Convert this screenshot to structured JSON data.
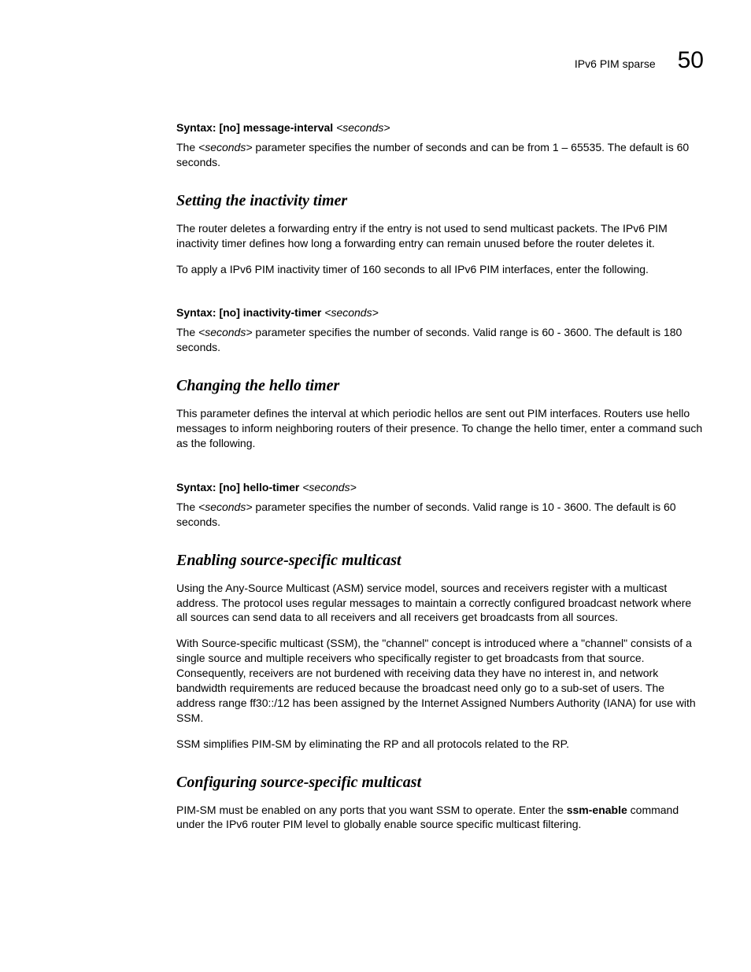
{
  "header": {
    "breadcrumb": "IPv6 PIM sparse",
    "page_number": "50"
  },
  "s0": {
    "syntax_label": "Syntax:",
    "syntax_cmd": " [no] message-interval ",
    "syntax_param": "<seconds>",
    "p1a": "The ",
    "p1b": "<seconds>",
    "p1c": " parameter specifies the number of seconds and can be from 1 – 65535. The default is 60 seconds."
  },
  "s1": {
    "title": "Setting the inactivity timer",
    "p1": "The router deletes a forwarding entry if the entry is not used to send multicast packets. The IPv6 PIM inactivity timer defines how long a forwarding entry can remain unused before the router deletes it.",
    "p2": "To apply a IPv6 PIM inactivity timer of 160 seconds to all IPv6 PIM interfaces, enter the following.",
    "syntax_label": "Syntax:",
    "syntax_cmd": " [no] inactivity-timer ",
    "syntax_param": "<seconds>",
    "p3a": "The ",
    "p3b": "<seconds>",
    "p3c": " parameter specifies the number of seconds. Valid range is 60 - 3600. The default is 180 seconds."
  },
  "s2": {
    "title": "Changing the hello timer",
    "p1": "This parameter defines the interval at which periodic hellos are sent out PIM interfaces.  Routers use hello messages to inform neighboring routers of their presence.  To change the hello timer, enter a command such as the following.",
    "syntax_label": "Syntax:",
    "syntax_cmd": " [no] hello-timer ",
    "syntax_param": "<seconds>",
    "p2a": "The ",
    "p2b": "<seconds>",
    "p2c": " parameter specifies the number of seconds. Valid range is 10 - 3600. The default is 60 seconds."
  },
  "s3": {
    "title": "Enabling source-specific multicast",
    "p1": "Using the Any-Source Multicast (ASM) service model, sources and receivers register with a multicast address. The protocol uses regular messages to maintain a correctly configured broadcast network where all sources can send data to all receivers and all receivers get broadcasts from all sources.",
    "p2": "With Source-specific multicast (SSM), the \"channel\" concept is introduced where a \"channel\" consists of a single source and multiple receivers who specifically register to get broadcasts from that source. Consequently, receivers are not burdened with receiving data they have no interest in, and network bandwidth requirements are reduced because the broadcast need only go to a sub-set of users. The address range ff30::/12 has been assigned by the Internet Assigned Numbers Authority (IANA)  for use with SSM.",
    "p3": "SSM simplifies PIM-SM by eliminating the RP and all protocols related to the RP."
  },
  "s4": {
    "title": "Configuring source-specific multicast",
    "p1a": "PIM-SM must be enabled on any ports that you want SSM to operate. Enter the ",
    "p1b": "ssm-enable",
    "p1c": " command under the IPv6 router PIM level to globally enable source specific multicast filtering."
  }
}
